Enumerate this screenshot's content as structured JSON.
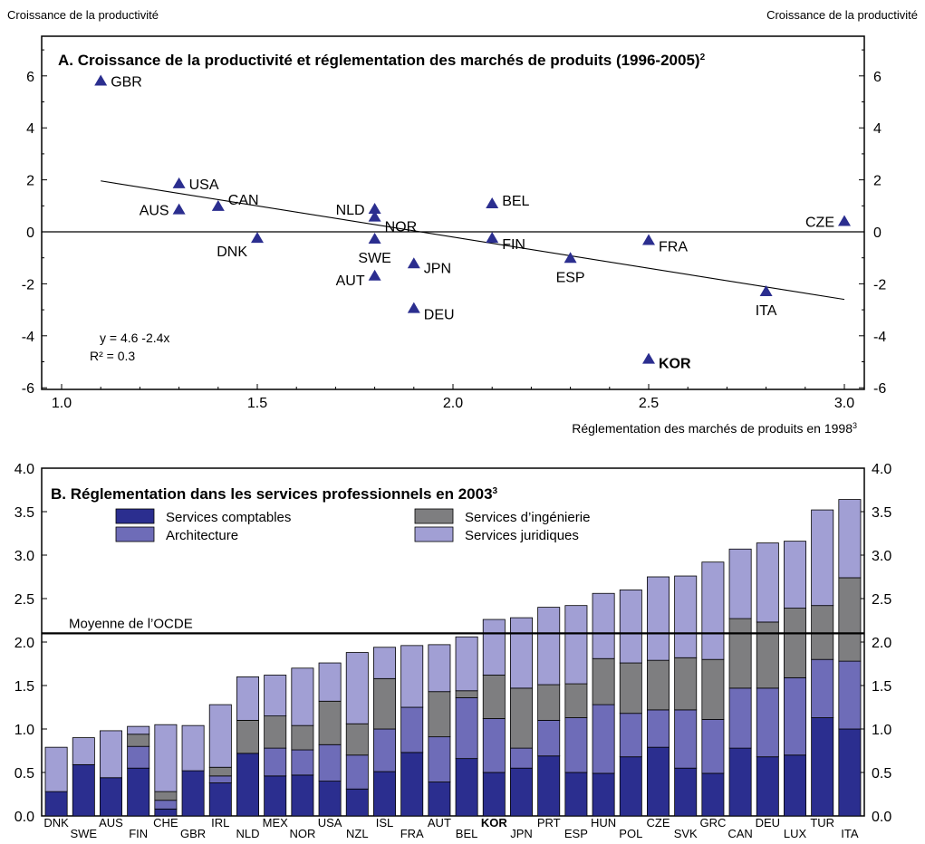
{
  "header": {
    "left_label": "Croissance de la productivité",
    "right_label": "Croissance de la productivité"
  },
  "chart_data": [
    {
      "type": "scatter",
      "title": "A. Croissance de la productivité et réglementation des marchés de produits (1996-2005)",
      "title_note": "2",
      "xlabel": "Réglementation des marchés de produits en 1998",
      "xlabel_note": "3",
      "ylabel": "Croissance de la productivité",
      "xlim": [
        1.0,
        3.0
      ],
      "ylim": [
        -6,
        7
      ],
      "xticks": [
        "1.0",
        "1.5",
        "2.0",
        "2.5",
        "3.0"
      ],
      "yticks": [
        "6",
        "4",
        "2",
        "0",
        "-2",
        "-4",
        "-6"
      ],
      "marker_color": "#2b2e8f",
      "points": [
        {
          "label": "GBR",
          "x": 1.1,
          "y": 5.8
        },
        {
          "label": "USA",
          "x": 1.3,
          "y": 1.85
        },
        {
          "label": "AUS",
          "x": 1.3,
          "y": 0.85
        },
        {
          "label": "CAN",
          "x": 1.4,
          "y": 0.98
        },
        {
          "label": "DNK",
          "x": 1.5,
          "y": -0.25
        },
        {
          "label": "NLD",
          "x": 1.8,
          "y": 0.87
        },
        {
          "label": "NOR",
          "x": 1.8,
          "y": 0.57
        },
        {
          "label": "SWE",
          "x": 1.8,
          "y": -0.28
        },
        {
          "label": "AUT",
          "x": 1.8,
          "y": -1.7
        },
        {
          "label": "JPN",
          "x": 1.9,
          "y": -1.23
        },
        {
          "label": "DEU",
          "x": 1.9,
          "y": -2.95
        },
        {
          "label": "BEL",
          "x": 2.1,
          "y": 1.08
        },
        {
          "label": "FIN",
          "x": 2.1,
          "y": -0.25
        },
        {
          "label": "ESP",
          "x": 2.3,
          "y": -1.02
        },
        {
          "label": "FRA",
          "x": 2.5,
          "y": -0.33
        },
        {
          "label": "KOR",
          "x": 2.5,
          "y": -4.9,
          "bold": true
        },
        {
          "label": "ITA",
          "x": 2.8,
          "y": -2.3
        },
        {
          "label": "CZE",
          "x": 3.0,
          "y": 0.4
        }
      ],
      "regression": {
        "equation_label": "y   =   4.6  -2.4x",
        "r2_label": "R² =    0.3",
        "intercept": 4.6,
        "slope": -2.4
      }
    },
    {
      "type": "bar",
      "stacked": true,
      "title": "B. Réglementation dans les services professionnels en 2003",
      "title_note": "3",
      "ylim": [
        0,
        4.0
      ],
      "yticks": [
        "0.0",
        "0.5",
        "1.0",
        "1.5",
        "2.0",
        "2.5",
        "3.0",
        "3.5",
        "4.0"
      ],
      "reference_line": {
        "label": "Moyenne de l’OCDE",
        "value": 2.1
      },
      "categories": [
        "DNK",
        "SWE",
        "AUS",
        "FIN",
        "CHE",
        "GBR",
        "IRL",
        "NLD",
        "MEX",
        "NOR",
        "USA",
        "NZL",
        "ISL",
        "FRA",
        "AUT",
        "BEL",
        "KOR",
        "JPN",
        "PRT",
        "ESP",
        "HUN",
        "POL",
        "CZE",
        "SVK",
        "GRC",
        "CAN",
        "DEU",
        "LUX",
        "TUR",
        "ITA"
      ],
      "bold_category": "KOR",
      "series": [
        {
          "name": "Services comptables",
          "color": "#2b2e8f",
          "values": [
            0.28,
            0.59,
            0.44,
            0.55,
            0.08,
            0.52,
            0.38,
            0.72,
            0.46,
            0.47,
            0.4,
            0.31,
            0.51,
            0.73,
            0.39,
            0.66,
            0.5,
            0.55,
            0.69,
            0.5,
            0.49,
            0.68,
            0.79,
            0.55,
            0.49,
            0.78,
            0.68,
            0.7,
            1.13,
            1.0
          ]
        },
        {
          "name": "Architecture",
          "color": "#6e6cb8",
          "values": [
            0,
            0,
            0,
            0.25,
            0.1,
            0,
            0.08,
            0,
            0.32,
            0.29,
            0.42,
            0.39,
            0.49,
            0.52,
            0.52,
            0.7,
            0.62,
            0.23,
            0.41,
            0.63,
            0.79,
            0.5,
            0.43,
            0.67,
            0.62,
            0.69,
            0.79,
            0.89,
            0.67,
            0.78
          ]
        },
        {
          "name": "Services d’ingénierie",
          "color": "#7e7e80",
          "values": [
            0,
            0,
            0,
            0.14,
            0.1,
            0,
            0.1,
            0.38,
            0.37,
            0.28,
            0.5,
            0.36,
            0.58,
            0,
            0.52,
            0.08,
            0.5,
            0.69,
            0.41,
            0.39,
            0.53,
            0.58,
            0.57,
            0.6,
            0.69,
            0.8,
            0.76,
            0.8,
            0.62,
            0.96
          ]
        },
        {
          "name": "Services juridiques",
          "color": "#a19fd4",
          "values": [
            0.51,
            0.31,
            0.54,
            0.09,
            0.77,
            0.52,
            0.72,
            0.5,
            0.47,
            0.66,
            0.44,
            0.82,
            0.36,
            0.71,
            0.54,
            0.62,
            0.64,
            0.81,
            0.89,
            0.9,
            0.75,
            0.84,
            0.96,
            0.94,
            1.12,
            0.8,
            0.91,
            0.77,
            1.1,
            0.9
          ]
        }
      ]
    }
  ]
}
